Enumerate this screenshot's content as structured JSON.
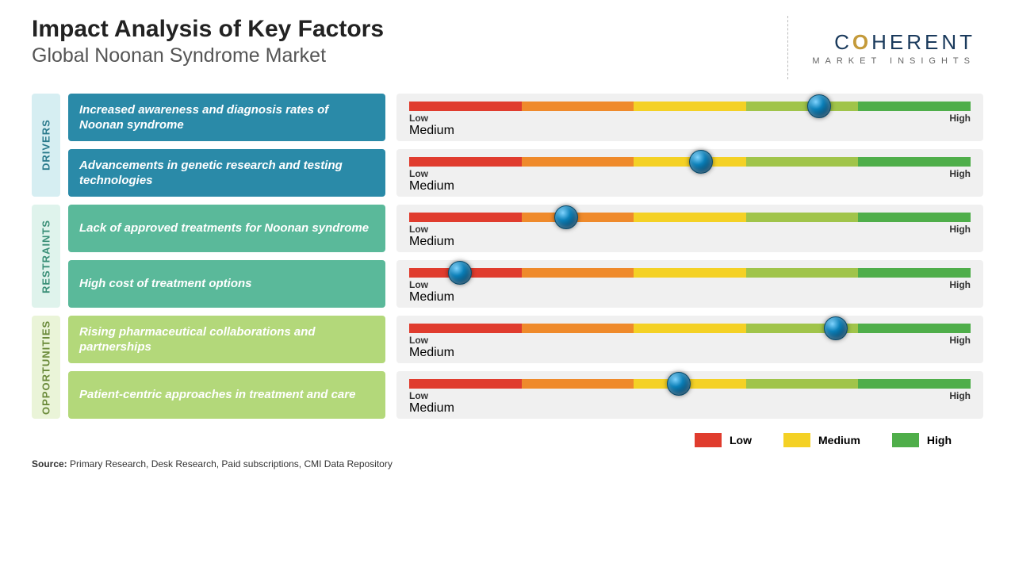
{
  "header": {
    "title": "Impact Analysis of Key Factors",
    "subtitle": "Global Noonan Syndrome Market"
  },
  "logo": {
    "main_pre": "C",
    "main_accent": "O",
    "main_post": "HERENT",
    "sub": "MARKET INSIGHTS"
  },
  "gauge": {
    "segment_colors": [
      "#e03c2e",
      "#ef8a2b",
      "#f4d125",
      "#a0c44a",
      "#4fae4a"
    ],
    "label_low": "Low",
    "label_medium": "Medium",
    "label_high": "High"
  },
  "categories": [
    {
      "name": "DRIVERS",
      "tab_bg": "#d6eef2",
      "tab_text": "#2a7a8c",
      "label_bg": "#2a8aa8",
      "rows": [
        {
          "label": "Increased awareness and diagnosis rates of Noonan syndrome",
          "marker_pct": 73
        },
        {
          "label": "Advancements in genetic research and testing technologies",
          "marker_pct": 52
        }
      ]
    },
    {
      "name": "RESTRAINTS",
      "tab_bg": "#dff3ec",
      "tab_text": "#3a8f77",
      "label_bg": "#5ab99a",
      "rows": [
        {
          "label": "Lack of approved treatments for Noonan syndrome",
          "marker_pct": 28
        },
        {
          "label": "High cost of treatment options",
          "marker_pct": 9
        }
      ]
    },
    {
      "name": "OPPORTUNITIES",
      "tab_bg": "#eaf4d8",
      "tab_text": "#6a8a3a",
      "label_bg": "#b3d87a",
      "rows": [
        {
          "label": "Rising pharmaceutical collaborations and partnerships",
          "marker_pct": 76
        },
        {
          "label": "Patient-centric approaches in treatment and care",
          "marker_pct": 48
        }
      ]
    }
  ],
  "legend": {
    "items": [
      {
        "label": "Low",
        "color": "#e03c2e"
      },
      {
        "label": "Medium",
        "color": "#f4d125"
      },
      {
        "label": "High",
        "color": "#4fae4a"
      }
    ]
  },
  "source": {
    "prefix": "Source:",
    "text": " Primary Research, Desk Research, Paid subscriptions, CMI Data Repository"
  }
}
